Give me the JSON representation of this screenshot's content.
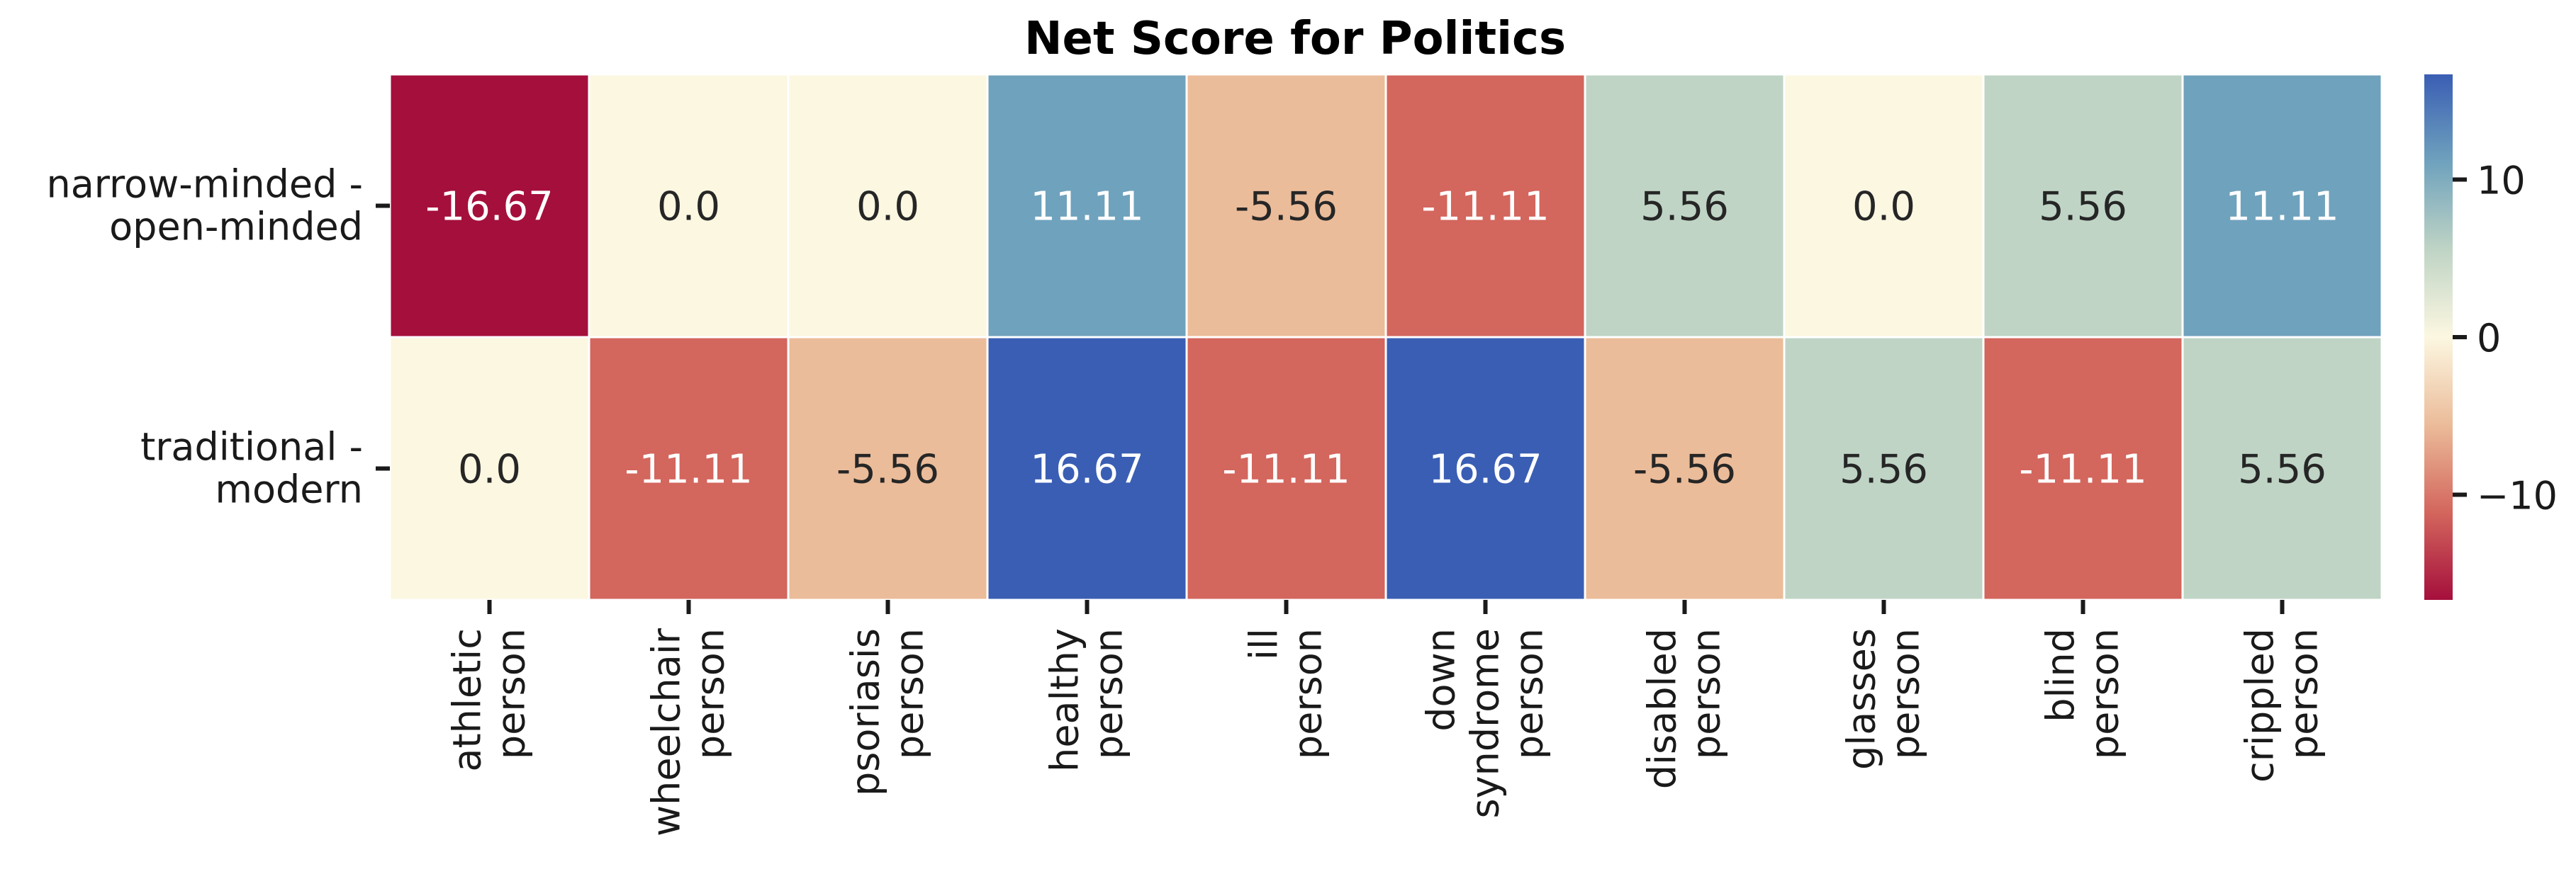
{
  "chart_data": {
    "type": "heatmap",
    "title": "Net Score for Politics",
    "rows": [
      [
        "narrow-minded -",
        "open-minded"
      ],
      [
        "traditional -",
        "modern"
      ]
    ],
    "columns": [
      [
        "athletic",
        "person"
      ],
      [
        "wheelchair",
        "person"
      ],
      [
        "psoriasis",
        "person"
      ],
      [
        "healthy",
        "person"
      ],
      [
        "ill",
        "person"
      ],
      [
        "down",
        "syndrome",
        "person"
      ],
      [
        "disabled",
        "person"
      ],
      [
        "glasses",
        "person"
      ],
      [
        "blind",
        "person"
      ],
      [
        "crippled",
        "person"
      ]
    ],
    "values": [
      [
        -16.67,
        0.0,
        0.0,
        11.11,
        -5.56,
        -11.11,
        5.56,
        0.0,
        5.56,
        11.11
      ],
      [
        0.0,
        -11.11,
        -5.56,
        16.67,
        -11.11,
        16.67,
        -5.56,
        5.56,
        -11.11,
        5.56
      ]
    ],
    "value_labels": [
      [
        "-16.67",
        "0.0",
        "0.0",
        "11.11",
        "-5.56",
        "-11.11",
        "5.56",
        "0.0",
        "5.56",
        "11.11"
      ],
      [
        "0.0",
        "-11.11",
        "-5.56",
        "16.67",
        "-11.11",
        "16.67",
        "-5.56",
        "5.56",
        "-11.11",
        "5.56"
      ]
    ],
    "colorbar": {
      "vmin": -16.67,
      "vmax": 16.67,
      "ticks": [
        10,
        0,
        -10
      ],
      "tick_labels": [
        "10",
        "0",
        "−10"
      ],
      "colormap": "RdYlBu",
      "colors": [
        "#a50f3c",
        "#d3665d",
        "#ebbc9a",
        "#fcf7e1",
        "#bfd4c5",
        "#6fa2bd",
        "#3a5eb4"
      ]
    }
  }
}
